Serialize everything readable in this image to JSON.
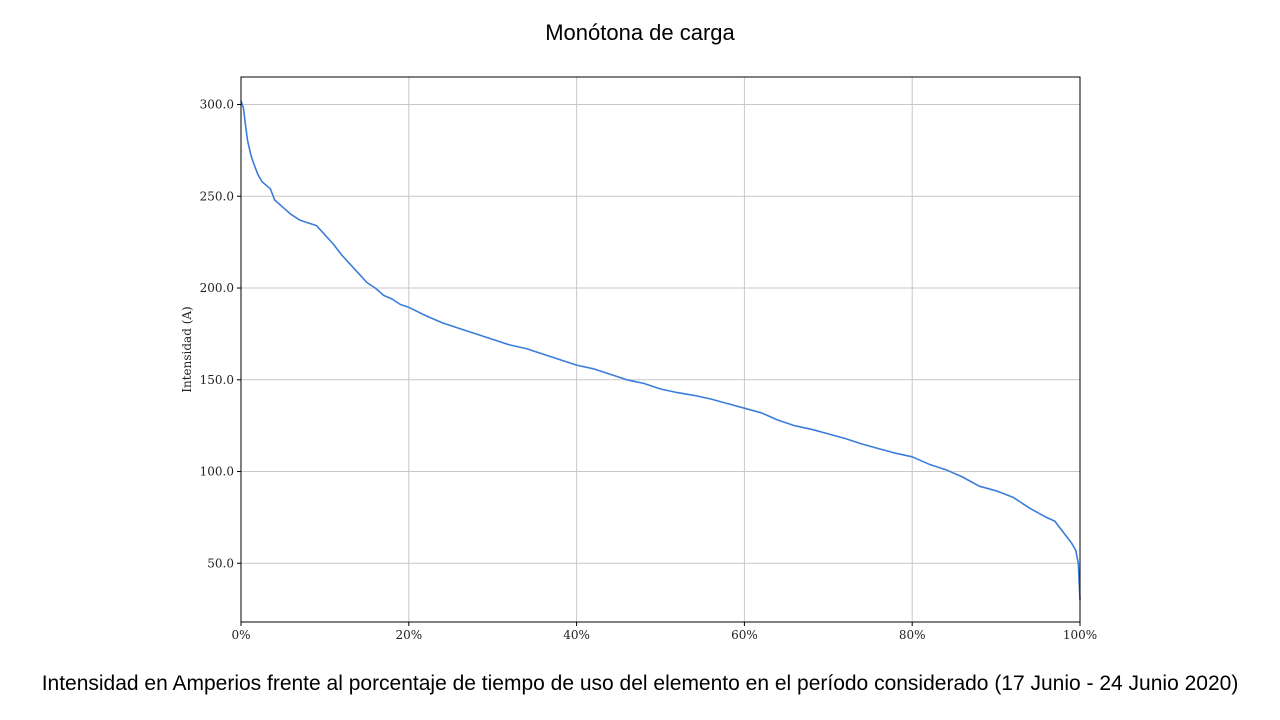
{
  "chart_data": {
    "type": "line",
    "title": "Monótona de carga",
    "xlabel": "",
    "ylabel": "Intensidad (A)",
    "caption": "Intensidad en Amperios frente al porcentaje de tiempo de uso del elemento en el período considerado (17 Junio - 24 Junio 2020)",
    "xlim": [
      0,
      100
    ],
    "ylim": [
      18,
      315
    ],
    "grid": true,
    "x_ticks": [
      0,
      20,
      40,
      60,
      80,
      100
    ],
    "x_tick_labels": [
      "0%",
      "20%",
      "40%",
      "60%",
      "80%",
      "100%"
    ],
    "y_ticks": [
      50,
      100,
      150,
      200,
      250,
      300
    ],
    "y_tick_labels": [
      "50.0",
      "100.0",
      "150.0",
      "200.0",
      "250.0",
      "300.0"
    ],
    "series": [
      {
        "color": "#3c7dd9",
        "x": [
          0,
          0.3,
          0.5,
          0.8,
          1.2,
          1.5,
          2,
          2.5,
          3,
          3.5,
          4,
          5,
          6,
          7,
          8,
          9,
          10,
          11,
          12,
          13,
          14,
          15,
          16,
          17,
          18,
          19,
          20,
          22,
          24,
          26,
          28,
          30,
          32,
          34,
          36,
          38,
          40,
          42,
          44,
          46,
          48,
          50,
          52,
          54,
          56,
          58,
          60,
          62,
          64,
          66,
          68,
          70,
          72,
          74,
          76,
          78,
          80,
          82,
          84,
          86,
          88,
          90,
          92,
          94,
          96,
          97,
          98,
          99,
          99.5,
          99.8,
          100
        ],
        "values": [
          302,
          298,
          290,
          280,
          272,
          268,
          262,
          258,
          256,
          254,
          248,
          244,
          240,
          237,
          235.5,
          234,
          229,
          224,
          218,
          213,
          208,
          203,
          200,
          196,
          194,
          191,
          189.5,
          185,
          181,
          178,
          175,
          172,
          169,
          167,
          164,
          161,
          158,
          156,
          153,
          150,
          148,
          145,
          143,
          141.5,
          139.5,
          137,
          134.5,
          132,
          128,
          125,
          123,
          120.5,
          118,
          115,
          112.5,
          110,
          108,
          104,
          101,
          97,
          92,
          89.5,
          86,
          80,
          75,
          73,
          67,
          61,
          57,
          50,
          30
        ]
      }
    ]
  }
}
